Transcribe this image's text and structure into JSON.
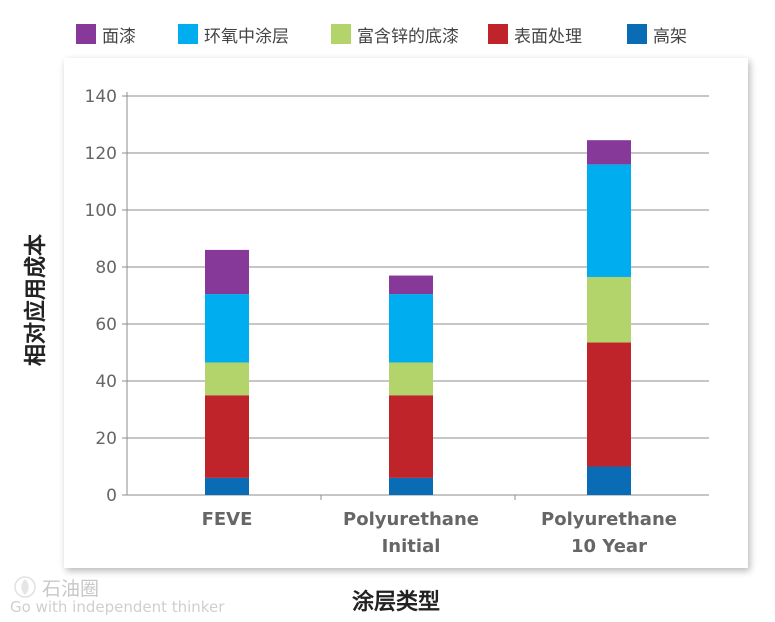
{
  "chart_data": {
    "type": "bar",
    "stacked": true,
    "categories": [
      [
        "FEVE"
      ],
      [
        "Polyurethane",
        "Initial"
      ],
      [
        "Polyurethane",
        "10 Year"
      ]
    ],
    "series": [
      {
        "name": "高架",
        "color": "#0b6cb6",
        "values": [
          6,
          6,
          10
        ]
      },
      {
        "name": "表面处理",
        "color": "#c0242b",
        "values": [
          29,
          29,
          43.5
        ]
      },
      {
        "name": "富含锌的底漆",
        "color": "#b3d36b",
        "values": [
          11.5,
          11.5,
          23
        ]
      },
      {
        "name": "环氧中涂层",
        "color": "#00adef",
        "values": [
          24,
          24,
          39.5
        ]
      },
      {
        "name": "面漆",
        "color": "#87399a",
        "values": [
          15.5,
          6.5,
          8.5
        ]
      }
    ],
    "legend_order": [
      "面漆",
      "环氧中涂层",
      "富含锌的底漆",
      "表面处理",
      "高架"
    ],
    "legend_position": "top",
    "xlabel": "涂层类型",
    "ylabel": "相对应用成本",
    "ylim": [
      0,
      140
    ],
    "yticks": [
      0,
      20,
      40,
      60,
      80,
      100,
      120,
      140
    ],
    "grid": true
  },
  "watermark": {
    "name": "石油圈",
    "slogan": "Go with independent thinker"
  }
}
